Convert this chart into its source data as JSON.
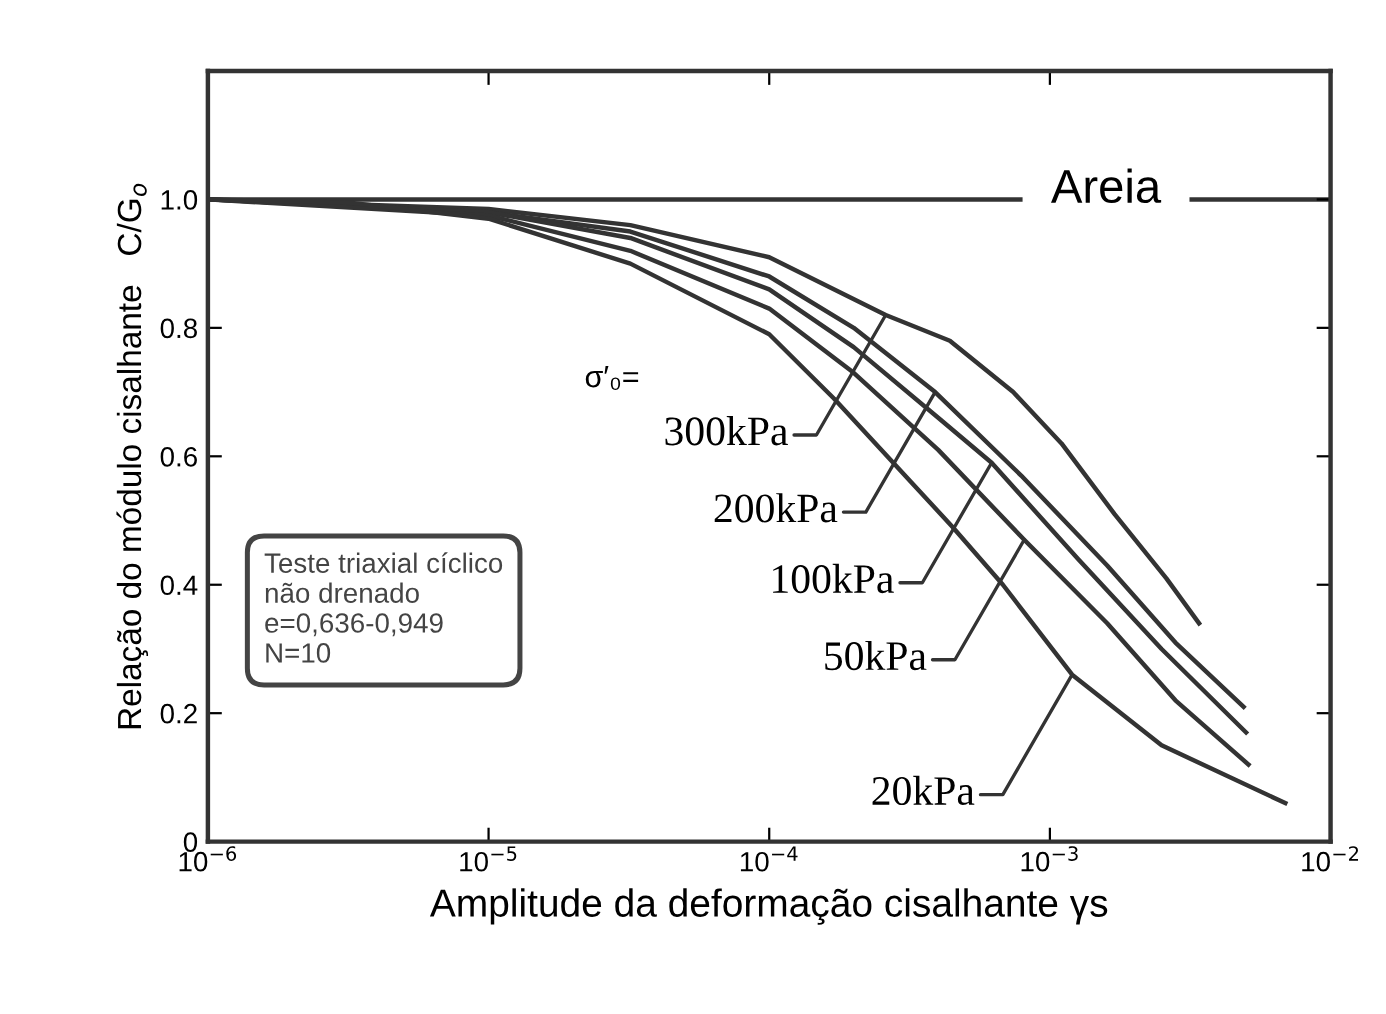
{
  "chart_data": {
    "type": "line",
    "xlabel": "Amplitude da deformação cisalhante γs",
    "ylabel": "Relação do módulo cisalhante   C/G$_{o}$",
    "log": "x",
    "xlim": [
      1e-06,
      0.01
    ],
    "xticks": [
      {
        "value": 1e-06,
        "label": "10$^{−6}$"
      },
      {
        "value": 1e-05,
        "label": "10$^{−5}$"
      },
      {
        "value": 0.0001,
        "label": "10$^{−4}$"
      },
      {
        "value": 0.001,
        "label": "10$^{−3}$"
      },
      {
        "value": 0.01,
        "label": "10$^{−2}$"
      }
    ],
    "ylim": [
      0,
      1.2
    ],
    "yticks": [
      {
        "value": 0,
        "label": "0"
      },
      {
        "value": 0.2,
        "label": "0.2"
      },
      {
        "value": 0.4,
        "label": "0.4"
      },
      {
        "value": 0.6,
        "label": "0.6"
      },
      {
        "value": 0.8,
        "label": "0.8"
      },
      {
        "value": 1.0,
        "label": "1.0"
      }
    ],
    "grid": false,
    "marker": "none",
    "line_style": "solid",
    "ref_lines": [
      {
        "axis": "y",
        "value": 1.0,
        "color": "#333333"
      }
    ],
    "series": [
      {
        "color": "#333333",
        "x": [
          1e-06,
          1e-05,
          3.2e-05,
          0.0001,
          0.00026,
          0.00044,
          0.00074,
          0.0011,
          0.0017,
          0.0026,
          0.0034
        ],
        "values": [
          1.0,
          0.985,
          0.96,
          0.91,
          0.82,
          0.78,
          0.7,
          0.62,
          0.51,
          0.41,
          0.34
        ]
      },
      {
        "color": "#333333",
        "x": [
          1e-06,
          1e-05,
          3.2e-05,
          0.0001,
          0.0002,
          0.00039,
          0.00079,
          0.0016,
          0.0028,
          0.0049
        ],
        "values": [
          1.0,
          0.98,
          0.95,
          0.88,
          0.8,
          0.7,
          0.57,
          0.43,
          0.31,
          0.21
        ]
      },
      {
        "color": "#333333",
        "x": [
          1e-06,
          1e-05,
          3.2e-05,
          0.0001,
          0.0002,
          0.0004,
          0.00062,
          0.00126,
          0.0025,
          0.005
        ],
        "values": [
          1.0,
          0.98,
          0.94,
          0.86,
          0.77,
          0.66,
          0.59,
          0.44,
          0.3,
          0.17
        ]
      },
      {
        "color": "#333333",
        "x": [
          1e-06,
          1e-05,
          3.2e-05,
          0.0001,
          0.0002,
          0.0004,
          0.00081,
          0.0016,
          0.0028,
          0.0051
        ],
        "values": [
          1.0,
          0.975,
          0.92,
          0.83,
          0.73,
          0.61,
          0.47,
          0.34,
          0.22,
          0.12
        ]
      },
      {
        "color": "#333333",
        "x": [
          1e-06,
          3.2e-06,
          1e-05,
          3.2e-05,
          0.0001,
          0.00017,
          0.00032,
          0.00045,
          0.00068,
          0.0012,
          0.0025,
          0.0069
        ],
        "values": [
          1.0,
          0.995,
          0.97,
          0.9,
          0.79,
          0.69,
          0.56,
          0.49,
          0.4,
          0.26,
          0.15,
          0.06
        ]
      }
    ],
    "annotations": [
      "Areia",
      "σ′₀=",
      "Teste triaxial cíclico\nnão drenado\ne=0,636-0,949\nN=10",
      {
        "text": "300kPa",
        "x": 0.00026,
        "y": 0.82
      },
      {
        "text": "200kPa",
        "x": 0.00039,
        "y": 0.7
      },
      {
        "text": "100kPa",
        "x": 0.00062,
        "y": 0.59
      },
      {
        "text": "50kPa",
        "x": 0.00081,
        "y": 0.47
      },
      {
        "text": "20kPa",
        "x": 0.0012,
        "y": 0.26
      }
    ]
  }
}
